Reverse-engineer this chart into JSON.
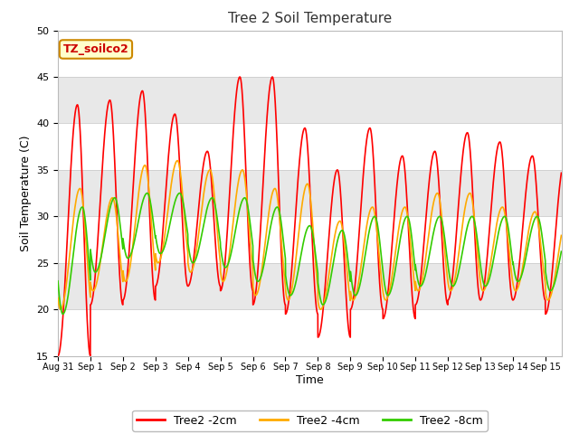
{
  "title": "Tree 2 Soil Temperature",
  "xlabel": "Time",
  "ylabel": "Soil Temperature (C)",
  "ylim": [
    15,
    50
  ],
  "yticks": [
    15,
    20,
    25,
    30,
    35,
    40,
    45,
    50
  ],
  "annotation_text": "TZ_soilco2",
  "annotation_bg": "#ffffcc",
  "annotation_edge": "#cc8800",
  "series": {
    "Tree2 -2cm": {
      "color": "#ff0000",
      "lw": 1.2
    },
    "Tree2 -4cm": {
      "color": "#ffaa00",
      "lw": 1.2
    },
    "Tree2 -8cm": {
      "color": "#33cc00",
      "lw": 1.2
    }
  },
  "fig_bg": "#ffffff",
  "plot_bg": "#ffffff",
  "band_colors": [
    "#ffffff",
    "#e8e8e8"
  ],
  "grid_color": "#cccccc",
  "tick_labels": [
    "Aug 31",
    "Sep 1",
    "Sep 2",
    "Sep 3",
    "Sep 4",
    "Sep 5",
    "Sep 6",
    "Sep 7",
    "Sep 8",
    "Sep 9",
    "Sep 10",
    "Sep 11",
    "Sep 12",
    "Sep 13",
    "Sep 14",
    "Sep 15"
  ],
  "peaks_2cm": [
    42,
    42.5,
    43.5,
    41,
    37,
    45,
    45,
    39.5,
    35,
    39.5,
    36.5,
    37,
    39,
    38,
    36.5,
    36
  ],
  "mins_2cm": [
    15,
    20.5,
    21,
    22.5,
    22.5,
    22,
    20.5,
    19.5,
    17,
    20,
    19,
    20.5,
    21,
    21,
    21,
    19.5
  ],
  "peaks_4cm": [
    33,
    32,
    35.5,
    36,
    35,
    35,
    33,
    33.5,
    29.5,
    31,
    31,
    32.5,
    32.5,
    31,
    30.5,
    30
  ],
  "mins_4cm": [
    20,
    22,
    23,
    25,
    24,
    23,
    21.5,
    21,
    20,
    21,
    21,
    22,
    22,
    22,
    22,
    21
  ],
  "peaks_8cm": [
    31,
    32,
    32.5,
    32.5,
    32,
    32,
    31,
    29,
    28.5,
    30,
    30,
    30,
    30,
    30,
    30,
    29
  ],
  "mins_8cm": [
    19.5,
    24,
    25.5,
    26,
    25,
    24.5,
    23,
    21.5,
    20.5,
    21.5,
    21.5,
    22.5,
    22.5,
    22.5,
    23,
    22
  ]
}
